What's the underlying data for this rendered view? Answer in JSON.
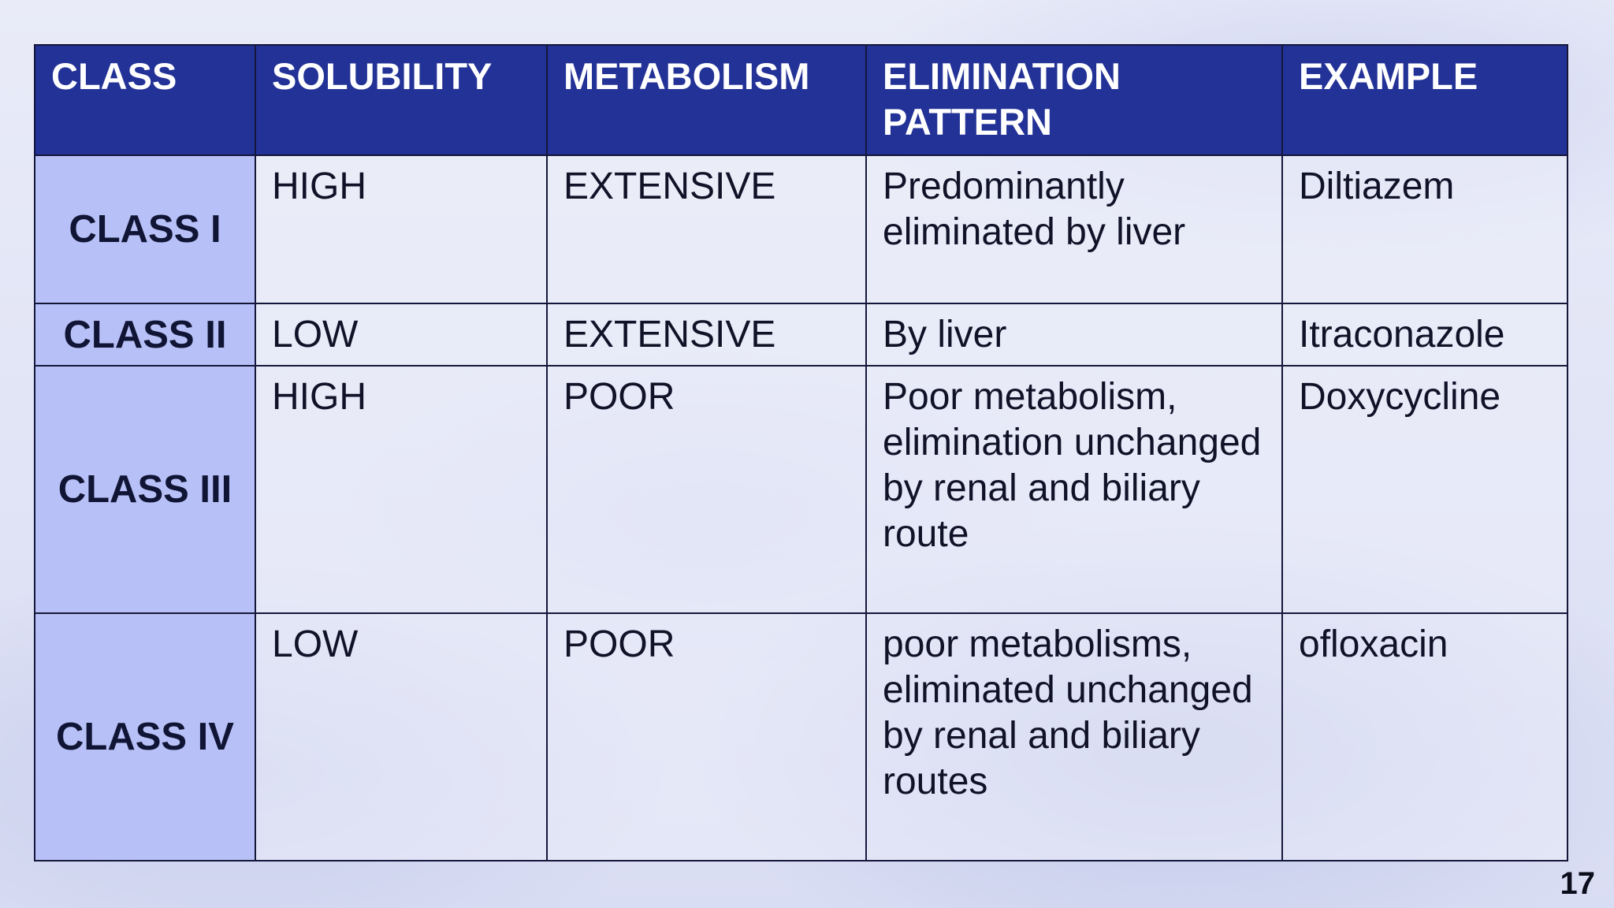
{
  "table": {
    "headers": [
      "CLASS",
      "SOLUBILITY",
      "METABOLISM",
      "ELIMINATION PATTERN",
      "EXAMPLE"
    ],
    "rows": [
      {
        "class": "CLASS I",
        "solubility": "HIGH",
        "metabolism": "EXTENSIVE",
        "elimination": "Predominantly eliminated by liver",
        "example": "Diltiazem"
      },
      {
        "class": "CLASS II",
        "solubility": "LOW",
        "metabolism": "EXTENSIVE",
        "elimination": "By liver",
        "example": "Itraconazole"
      },
      {
        "class": "CLASS III",
        "solubility": "HIGH",
        "metabolism": "POOR",
        "elimination": "Poor metabolism, elimination unchanged by renal and biliary route",
        "example": "Doxycycline"
      },
      {
        "class": "CLASS IV",
        "solubility": "LOW",
        "metabolism": "POOR",
        "elimination": "poor metabolisms, eliminated unchanged by renal and biliary routes",
        "example": "ofloxacin"
      }
    ]
  },
  "page_number": "17",
  "colors": {
    "header_background": "#233296",
    "class_cell_background": "#b8c1f7",
    "border": "#15173a"
  }
}
